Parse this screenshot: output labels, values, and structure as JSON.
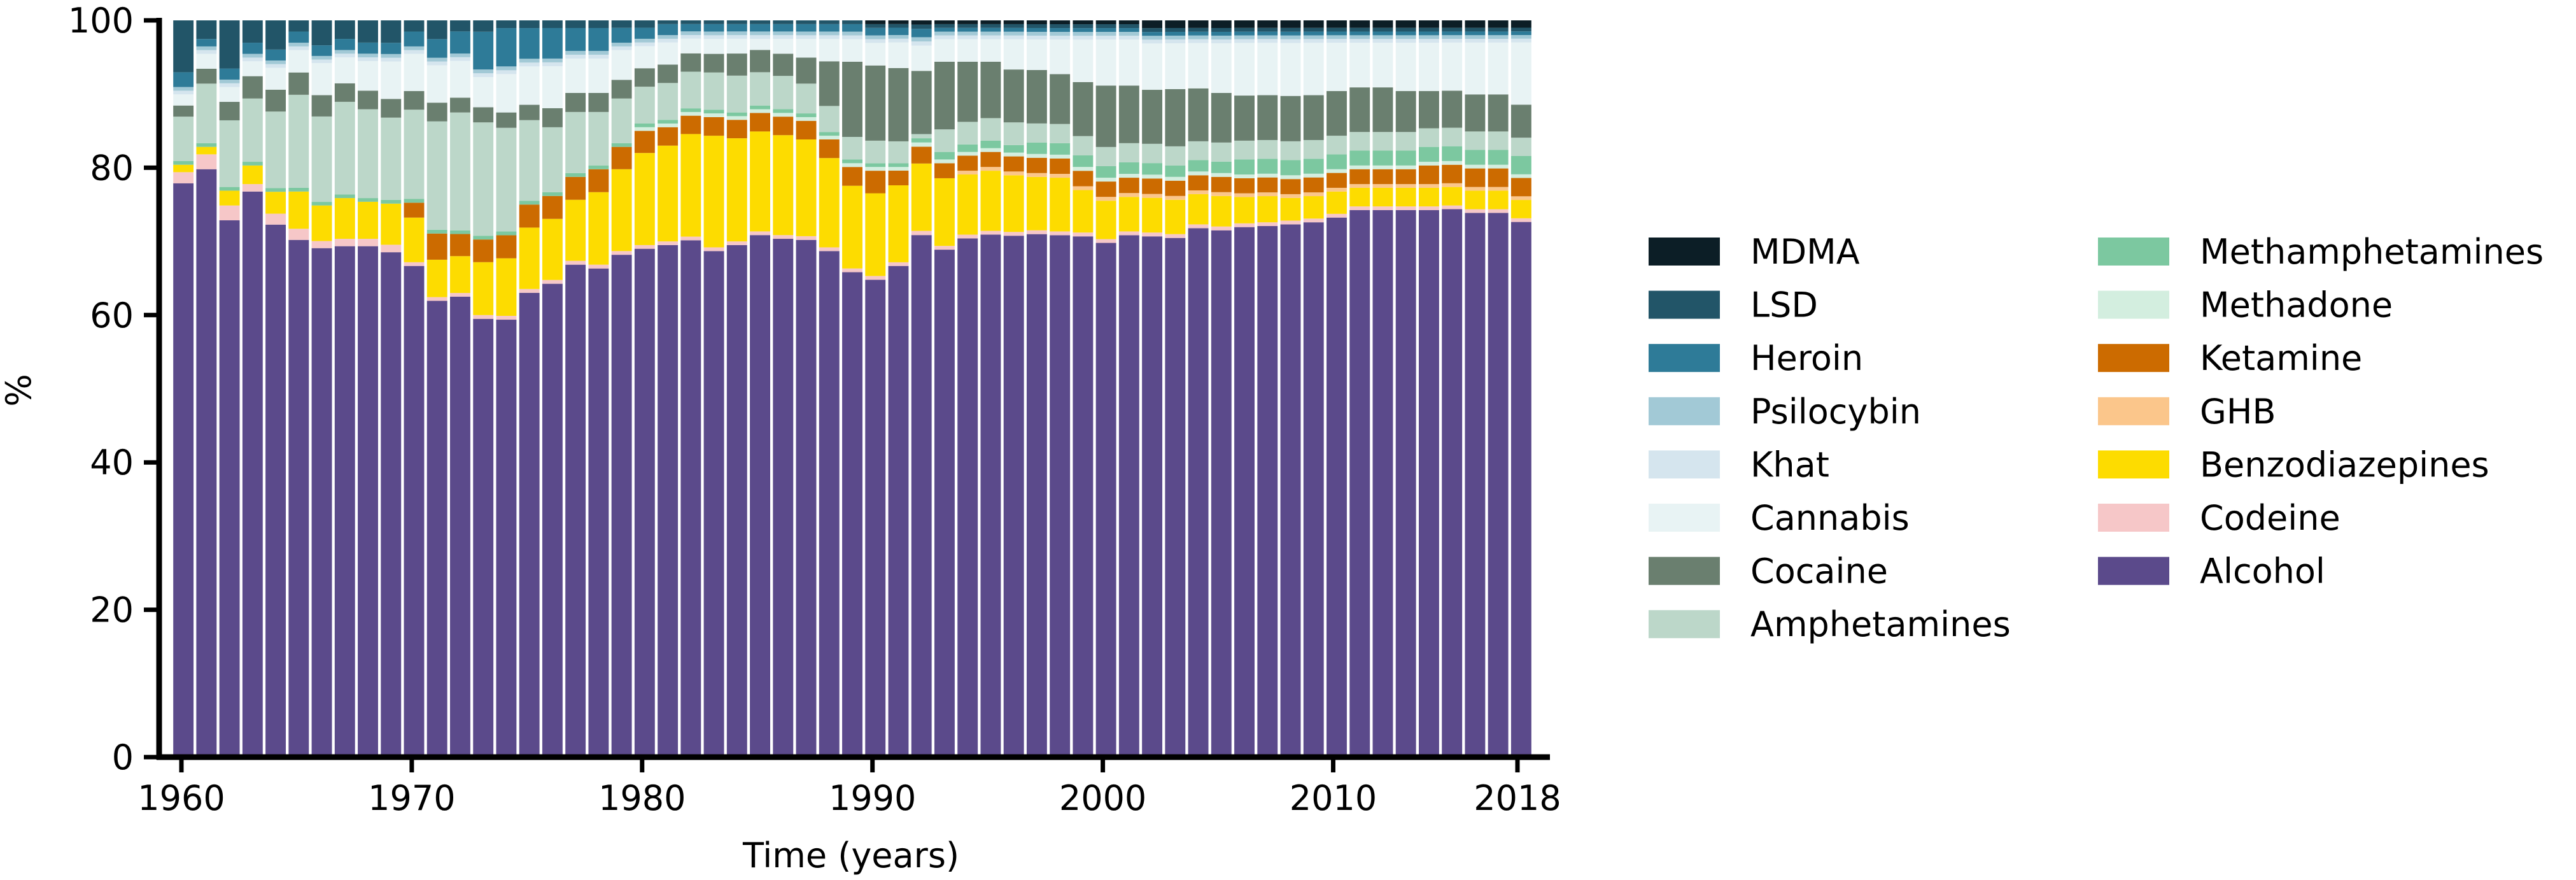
{
  "chart_data": {
    "type": "bar",
    "stacked": true,
    "title": "",
    "xlabel": "Time (years)",
    "ylabel": "%",
    "ylim": [
      0,
      100
    ],
    "yticks": [
      0,
      20,
      40,
      60,
      80,
      100
    ],
    "xlim": [
      1960,
      2018
    ],
    "xticks": [
      1960,
      1970,
      1980,
      1990,
      2000,
      2010,
      2018
    ],
    "grid": false,
    "legend_position": "right",
    "x": [
      1960,
      1961,
      1962,
      1963,
      1964,
      1965,
      1966,
      1967,
      1968,
      1969,
      1970,
      1971,
      1972,
      1973,
      1974,
      1975,
      1976,
      1977,
      1978,
      1979,
      1980,
      1981,
      1982,
      1983,
      1984,
      1985,
      1986,
      1987,
      1988,
      1989,
      1990,
      1991,
      1992,
      1993,
      1994,
      1995,
      1996,
      1997,
      1998,
      1999,
      2000,
      2001,
      2002,
      2003,
      2004,
      2005,
      2006,
      2007,
      2008,
      2009,
      2010,
      2011,
      2012,
      2013,
      2014,
      2015,
      2016,
      2017,
      2018
    ],
    "series": [
      {
        "name": "Alcohol",
        "color": "#5b4a8b",
        "values": [
          77.5,
          79,
          72.5,
          76,
          73,
          69.5,
          71.5,
          69,
          69,
          67.5,
          66,
          61,
          62.5,
          58,
          57,
          60.5,
          62,
          64.5,
          64,
          67.5,
          69,
          69.5,
          70.5,
          68,
          69.5,
          70.5,
          70,
          69.5,
          68,
          64.5,
          63.5,
          67,
          62,
          67.5,
          69,
          69.5,
          69,
          68.5,
          68,
          67.5,
          67,
          68,
          67.5,
          68,
          70,
          69,
          70.5,
          71,
          70.5,
          71.5,
          72.5,
          73.5,
          73.5,
          73.5,
          73.5,
          74,
          73.5,
          73.5,
          73
        ]
      },
      {
        "name": "Codeine",
        "color": "#f6c7c8",
        "values": [
          1.5,
          2,
          2,
          1,
          1.5,
          1.5,
          1,
          1,
          1,
          1,
          0.5,
          0.5,
          0.5,
          0.5,
          0.5,
          0.5,
          0.5,
          0.5,
          0.5,
          0.5,
          0.5,
          0.5,
          0.5,
          0.5,
          0.5,
          0.5,
          0.5,
          0.5,
          0.5,
          0.5,
          0.5,
          0.5,
          0.5,
          0.5,
          0.5,
          0.5,
          0.5,
          0.5,
          0.5,
          0.5,
          0.5,
          0.5,
          0.5,
          0.5,
          0.5,
          0.5,
          0.5,
          0.5,
          0.5,
          0.5,
          0.5,
          0.5,
          0.5,
          0.5,
          0.5,
          0.5,
          0.5,
          0.5,
          0.5
        ]
      },
      {
        "name": "Benzodiazepines",
        "color": "#fddc00",
        "values": [
          1,
          1,
          2,
          2.5,
          3,
          5,
          5,
          5.5,
          5,
          5.5,
          6,
          5,
          5,
          7,
          7.5,
          8,
          8,
          8,
          9.5,
          11,
          12.5,
          13,
          14,
          15,
          14,
          13.5,
          13.5,
          13,
          12,
          11,
          11,
          10.5,
          8,
          9,
          8,
          8,
          7.5,
          7,
          7,
          5.5,
          5,
          4.5,
          4.5,
          4.5,
          4,
          4,
          3.5,
          3.5,
          3,
          3,
          3,
          2.5,
          2.5,
          2.5,
          2.5,
          2.5,
          2.5,
          2.5,
          2.5
        ]
      },
      {
        "name": "GHB",
        "color": "#fbc68b",
        "values": [
          0,
          0,
          0,
          0,
          0,
          0,
          0,
          0,
          0,
          0,
          0,
          0,
          0,
          0,
          0,
          0,
          0,
          0,
          0,
          0,
          0,
          0,
          0,
          0,
          0,
          0,
          0,
          0,
          0,
          0,
          0,
          0,
          0,
          0,
          0.5,
          0.5,
          0.5,
          0.5,
          0.5,
          0.5,
          0.5,
          0.5,
          0.5,
          0.5,
          0.5,
          0.5,
          0.5,
          0.5,
          0.5,
          0.5,
          0.5,
          0.5,
          0.5,
          0.5,
          0.5,
          0.5,
          0.5,
          0.5,
          0.5
        ]
      },
      {
        "name": "Ketamine",
        "color": "#cc6b00",
        "values": [
          0,
          0,
          0,
          0,
          0,
          0,
          0,
          0,
          0,
          0,
          2,
          3.5,
          3,
          3,
          3,
          3,
          3,
          3,
          3,
          3,
          3,
          2.5,
          2.5,
          2.5,
          2.5,
          2.5,
          2.5,
          2.5,
          2.5,
          2.5,
          3,
          2,
          2,
          2,
          2,
          2,
          2,
          2,
          2,
          2,
          2,
          2,
          2,
          2,
          2,
          2,
          2,
          2,
          2,
          2,
          2,
          2,
          2,
          2,
          2.5,
          2.5,
          2.5,
          2.5,
          2.5
        ]
      },
      {
        "name": "Methadone",
        "color": "#d3eedf",
        "values": [
          0,
          0,
          0,
          0,
          0,
          0,
          0,
          0,
          0,
          0,
          0,
          0,
          0,
          0,
          0,
          0,
          0,
          0,
          0,
          0,
          0.5,
          0.5,
          0.5,
          0.5,
          0.5,
          0.5,
          0.5,
          0.5,
          0.5,
          0.5,
          0.5,
          0.5,
          0.5,
          0.5,
          0.5,
          0.5,
          0.5,
          0.5,
          0.5,
          0.5,
          0.5,
          0.5,
          0.5,
          0.5,
          0.5,
          0.5,
          0.5,
          0.5,
          0.5,
          0.5,
          0.5,
          0.5,
          0.5,
          0.5,
          0.5,
          0.5,
          0.5,
          0.5,
          0.5
        ]
      },
      {
        "name": "Methamphetamines",
        "color": "#7cc8a0",
        "values": [
          0.5,
          0.5,
          0.5,
          0.5,
          0.5,
          0.5,
          0.5,
          0.5,
          0.5,
          0.5,
          0.5,
          0.5,
          0.5,
          0.5,
          0.5,
          0.5,
          0.5,
          0.5,
          0.5,
          0.5,
          0.5,
          0.5,
          0.5,
          0.5,
          0.5,
          0.5,
          0.5,
          0.5,
          0.5,
          0.5,
          0.5,
          0.5,
          0.5,
          1,
          1,
          1,
          1,
          1.5,
          1.5,
          1.5,
          1.5,
          1.5,
          1.5,
          1.5,
          1.5,
          1.5,
          2,
          2,
          2,
          2,
          2,
          2,
          2,
          2,
          2,
          2,
          2,
          2,
          2.5
        ]
      },
      {
        "name": "Amphetamines",
        "color": "#bcd7c9",
        "values": [
          6,
          8,
          9,
          8.5,
          10.5,
          12.5,
          12,
          12.5,
          12,
          11,
          12,
          14.5,
          16,
          15,
          13.5,
          10.5,
          8.5,
          8,
          7,
          6,
          5,
          5,
          5,
          5,
          5,
          4.5,
          4.5,
          4,
          3.5,
          3,
          3,
          3,
          0.5,
          3,
          3,
          3,
          3,
          2.5,
          2.5,
          2.5,
          2.5,
          2.5,
          2.5,
          2.5,
          2.5,
          2.5,
          2.5,
          2.5,
          2.5,
          2.5,
          2.5,
          2.5,
          2.5,
          2.5,
          2.5,
          2.5,
          2.5,
          2.5,
          2.5
        ]
      },
      {
        "name": "Cocaine",
        "color": "#6a7f6f",
        "values": [
          1.5,
          2,
          2.5,
          3,
          3,
          3,
          3,
          2.5,
          2.5,
          2.5,
          2.5,
          2.5,
          2,
          2,
          2,
          2,
          2.5,
          2.5,
          2.5,
          2.5,
          2.5,
          2.5,
          2.5,
          2.5,
          3,
          3,
          3,
          3.5,
          6,
          10,
          10,
          10,
          7.5,
          9,
          8,
          7.5,
          7,
          7,
          6.5,
          7,
          8,
          7.5,
          7,
          7.5,
          7,
          6.5,
          6,
          6,
          6,
          6,
          6,
          6,
          6,
          5.5,
          5,
          5,
          5,
          5,
          4.5
        ]
      },
      {
        "name": "Cannabis",
        "color": "#e8f3f4",
        "values": [
          1.5,
          2,
          2,
          2,
          3,
          3,
          4.5,
          3.5,
          4,
          5,
          5,
          5,
          5,
          4,
          5,
          5,
          5.5,
          4.5,
          4.5,
          4,
          3,
          3,
          2,
          2,
          2,
          1.5,
          2,
          2.5,
          3,
          3,
          3,
          3.5,
          3,
          3,
          3,
          3,
          4,
          4,
          4.5,
          5.5,
          6,
          6,
          6,
          6,
          6,
          6.5,
          7,
          7,
          7,
          7,
          6.5,
          6,
          6,
          6.5,
          6.5,
          6.5,
          7,
          7,
          8.5
        ]
      },
      {
        "name": "Khat",
        "color": "#d5e5ee",
        "values": [
          0.5,
          0.5,
          0.5,
          0.5,
          0.5,
          0.5,
          0.5,
          0.5,
          0.5,
          0.5,
          0.5,
          0.5,
          0.5,
          0.5,
          0.5,
          0.5,
          0.5,
          0.5,
          0.5,
          0.5,
          0.5,
          0.5,
          0.5,
          0.5,
          0.5,
          0.5,
          0.5,
          0.5,
          0.5,
          0.5,
          0.5,
          0.5,
          0.5,
          0.5,
          0.5,
          0.5,
          0.5,
          0.5,
          0.5,
          0.5,
          0.5,
          0.5,
          0.5,
          0.5,
          0.5,
          0.5,
          0.5,
          0.5,
          0.5,
          0.5,
          0.5,
          0.5,
          0.5,
          0.5,
          0.5,
          0.5,
          0.5,
          0.5,
          0.5
        ]
      },
      {
        "name": "Psilocybin",
        "color": "#a2c9d6",
        "values": [
          0.5,
          0.5,
          0.5,
          0.5,
          0.5,
          0.5,
          0.5,
          0.5,
          0.5,
          0.5,
          0.5,
          0.5,
          0.5,
          0.5,
          0.5,
          0.5,
          0.5,
          0.5,
          0.5,
          0.5,
          0.5,
          0.5,
          0.5,
          0.5,
          0.5,
          0.5,
          0.5,
          0.5,
          0.5,
          0.5,
          0.5,
          0.5,
          0.5,
          0.5,
          0.5,
          0.5,
          0.5,
          0.5,
          0.5,
          0.5,
          0.5,
          0.5,
          0.5,
          0.5,
          0.5,
          0.5,
          0.5,
          0.5,
          0.5,
          0.5,
          0.5,
          0.5,
          0.5,
          0.5,
          0.5,
          0.5,
          0.5,
          0.5,
          0.5
        ]
      },
      {
        "name": "Heroin",
        "color": "#2e7b98",
        "values": [
          2,
          1,
          1.5,
          1.5,
          1.5,
          1.5,
          1.5,
          1.5,
          1.5,
          1.5,
          2,
          2.5,
          3,
          5,
          5,
          4,
          4,
          3,
          3,
          2,
          1.5,
          1.5,
          1,
          1,
          1,
          1,
          1,
          1,
          1,
          1,
          1,
          1,
          1,
          0.5,
          0.5,
          0.5,
          0.5,
          0.5,
          0.5,
          0.5,
          0.5,
          0.5,
          0.5,
          0.5,
          0.5,
          0.5,
          0.5,
          0.5,
          0.5,
          0.5,
          0.5,
          0.5,
          0.5,
          0.5,
          0.5,
          0.5,
          0.5,
          0.5,
          0.5
        ]
      },
      {
        "name": "LSD",
        "color": "#225568",
        "values": [
          7,
          2.5,
          6.5,
          3,
          4,
          1.5,
          3.5,
          2.5,
          3,
          3,
          1.5,
          2.5,
          1.5,
          1.5,
          1,
          1,
          1,
          1,
          1,
          1,
          1,
          0.5,
          0.5,
          0.5,
          0.5,
          0.5,
          0.5,
          0.5,
          0.5,
          0.5,
          0.5,
          0.5,
          0.5,
          0.5,
          0.5,
          0.5,
          0.5,
          0.5,
          0.5,
          0.5,
          0.5,
          0.5,
          0.5,
          0.5,
          0.5,
          0.5,
          0.5,
          0.5,
          0.5,
          0.5,
          0.5,
          0.5,
          0.5,
          0.5,
          0.5,
          0.5,
          0.5,
          0.5,
          0.5
        ]
      },
      {
        "name": "MDMA",
        "color": "#0c1e26",
        "values": [
          0,
          0,
          0,
          0,
          0,
          0,
          0,
          0,
          0,
          0,
          0,
          0,
          0,
          0,
          0,
          0,
          0,
          0,
          0,
          0,
          0,
          0,
          0,
          0,
          0,
          0,
          0,
          0,
          0,
          0,
          0.5,
          0.5,
          0.5,
          0.5,
          0.5,
          0.5,
          0.5,
          0.5,
          0.5,
          0.5,
          0.5,
          0.5,
          1,
          1,
          1,
          1,
          1,
          1,
          1,
          1,
          1,
          1,
          1,
          1,
          1,
          1,
          1,
          1,
          1
        ]
      }
    ],
    "legend_columns": [
      [
        "MDMA",
        "LSD",
        "Heroin",
        "Psilocybin",
        "Khat",
        "Cannabis",
        "Cocaine",
        "Amphetamines"
      ],
      [
        "Methamphetamines",
        "Methadone",
        "Ketamine",
        "GHB",
        "Benzodiazepines",
        "Codeine",
        "Alcohol"
      ]
    ]
  }
}
